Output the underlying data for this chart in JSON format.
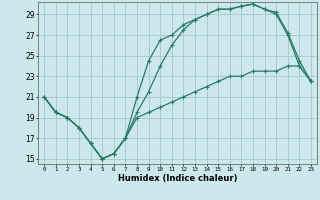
{
  "xlabel": "Humidex (Indice chaleur)",
  "ylabel": "",
  "xlim": [
    -0.5,
    23.5
  ],
  "ylim": [
    14.5,
    30.2
  ],
  "xticks": [
    0,
    1,
    2,
    3,
    4,
    5,
    6,
    7,
    8,
    9,
    10,
    11,
    12,
    13,
    14,
    15,
    16,
    17,
    18,
    19,
    20,
    21,
    22,
    23
  ],
  "yticks": [
    15,
    17,
    19,
    21,
    23,
    25,
    27,
    29
  ],
  "bg_color": "#cce8ed",
  "grid_color": "#aacccc",
  "line_color": "#2a7a6a",
  "line1_x": [
    0,
    1,
    2,
    3,
    4,
    5,
    6,
    7,
    8,
    9,
    10,
    11,
    12,
    13,
    14,
    15,
    16,
    17,
    18,
    19,
    20,
    21,
    22,
    23
  ],
  "line1_y": [
    21,
    19.5,
    19,
    18,
    16.5,
    15,
    15.5,
    17,
    19.5,
    21.5,
    24,
    26,
    27.5,
    28.5,
    29,
    29.5,
    29.5,
    29.8,
    30,
    29.5,
    29,
    27,
    24,
    22.5
  ],
  "line2_x": [
    0,
    1,
    2,
    3,
    4,
    5,
    6,
    7,
    8,
    9,
    10,
    11,
    12,
    13,
    14,
    15,
    16,
    17,
    18,
    19,
    20,
    21,
    22,
    23
  ],
  "line2_y": [
    21,
    19.5,
    19,
    18,
    16.5,
    15,
    15.5,
    17,
    21,
    24.5,
    26.5,
    27,
    28,
    28.5,
    29,
    29.5,
    29.5,
    29.8,
    30,
    29.5,
    29.2,
    27.2,
    24.5,
    22.5
  ],
  "line3_x": [
    0,
    1,
    2,
    3,
    4,
    5,
    6,
    7,
    8,
    9,
    10,
    11,
    12,
    13,
    14,
    15,
    16,
    17,
    18,
    19,
    20,
    21,
    22,
    23
  ],
  "line3_y": [
    21,
    19.5,
    19,
    18,
    16.5,
    15,
    15.5,
    17,
    19,
    19.5,
    20,
    20.5,
    21,
    21.5,
    22,
    22.5,
    23,
    23,
    23.5,
    23.5,
    23.5,
    24,
    24,
    22.5
  ]
}
